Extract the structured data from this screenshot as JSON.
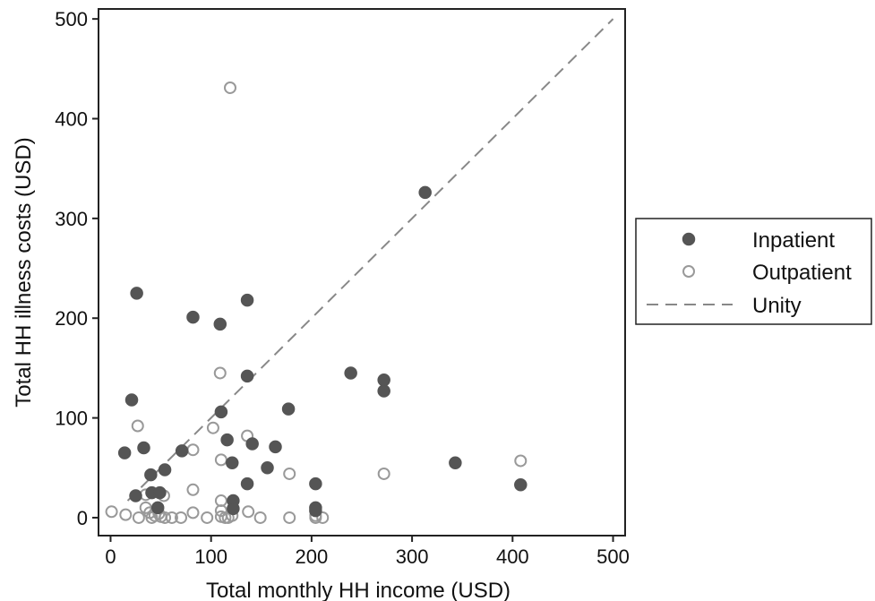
{
  "chart_data": {
    "type": "scatter",
    "xlabel": "Total monthly HH income (USD)",
    "ylabel": "Total HH illness costs (USD)",
    "xlim": [
      -12,
      512
    ],
    "ylim": [
      -18,
      510
    ],
    "xticks": [
      0,
      100,
      200,
      300,
      400,
      500
    ],
    "yticks": [
      0,
      100,
      200,
      300,
      400,
      500
    ],
    "grid": false,
    "legend_position": "right",
    "series": [
      {
        "name": "Inpatient",
        "marker": "filled-circle",
        "color": "#555555",
        "points": [
          [
            14,
            65
          ],
          [
            21,
            118
          ],
          [
            26,
            225
          ],
          [
            25,
            22
          ],
          [
            33,
            70
          ],
          [
            40,
            43
          ],
          [
            41,
            25
          ],
          [
            47,
            10
          ],
          [
            49,
            25
          ],
          [
            54,
            48
          ],
          [
            71,
            67
          ],
          [
            82,
            201
          ],
          [
            109,
            194
          ],
          [
            110,
            106
          ],
          [
            116,
            78
          ],
          [
            121,
            55
          ],
          [
            122,
            17
          ],
          [
            122,
            9
          ],
          [
            136,
            218
          ],
          [
            136,
            142
          ],
          [
            136,
            34
          ],
          [
            141,
            74
          ],
          [
            156,
            50
          ],
          [
            164,
            71
          ],
          [
            177,
            109
          ],
          [
            204,
            34
          ],
          [
            204,
            10
          ],
          [
            204,
            7
          ],
          [
            239,
            145
          ],
          [
            272,
            138
          ],
          [
            272,
            127
          ],
          [
            313,
            326
          ],
          [
            343,
            55
          ],
          [
            408,
            33
          ]
        ]
      },
      {
        "name": "Outpatient",
        "marker": "hollow-circle",
        "color": "#999999",
        "points": [
          [
            1,
            6
          ],
          [
            15,
            3
          ],
          [
            27,
            92
          ],
          [
            28,
            0
          ],
          [
            35,
            23
          ],
          [
            35,
            10
          ],
          [
            39,
            5
          ],
          [
            41,
            0
          ],
          [
            44,
            2
          ],
          [
            48,
            4
          ],
          [
            50,
            1
          ],
          [
            53,
            22
          ],
          [
            54,
            0
          ],
          [
            61,
            0
          ],
          [
            70,
            0
          ],
          [
            82,
            28
          ],
          [
            82,
            68
          ],
          [
            82,
            5
          ],
          [
            96,
            0
          ],
          [
            102,
            90
          ],
          [
            109,
            145
          ],
          [
            110,
            58
          ],
          [
            110,
            17
          ],
          [
            110,
            7
          ],
          [
            110,
            1
          ],
          [
            114,
            0
          ],
          [
            117,
            0
          ],
          [
            119,
            431
          ],
          [
            121,
            2
          ],
          [
            136,
            82
          ],
          [
            137,
            6
          ],
          [
            149,
            0
          ],
          [
            178,
            44
          ],
          [
            178,
            0
          ],
          [
            204,
            2
          ],
          [
            204,
            0
          ],
          [
            211,
            0
          ],
          [
            272,
            44
          ],
          [
            408,
            57
          ]
        ]
      },
      {
        "name": "Unity",
        "marker": "dashed-line",
        "color": "#888888",
        "line": [
          [
            17,
            17
          ],
          [
            500,
            500
          ]
        ]
      }
    ]
  }
}
